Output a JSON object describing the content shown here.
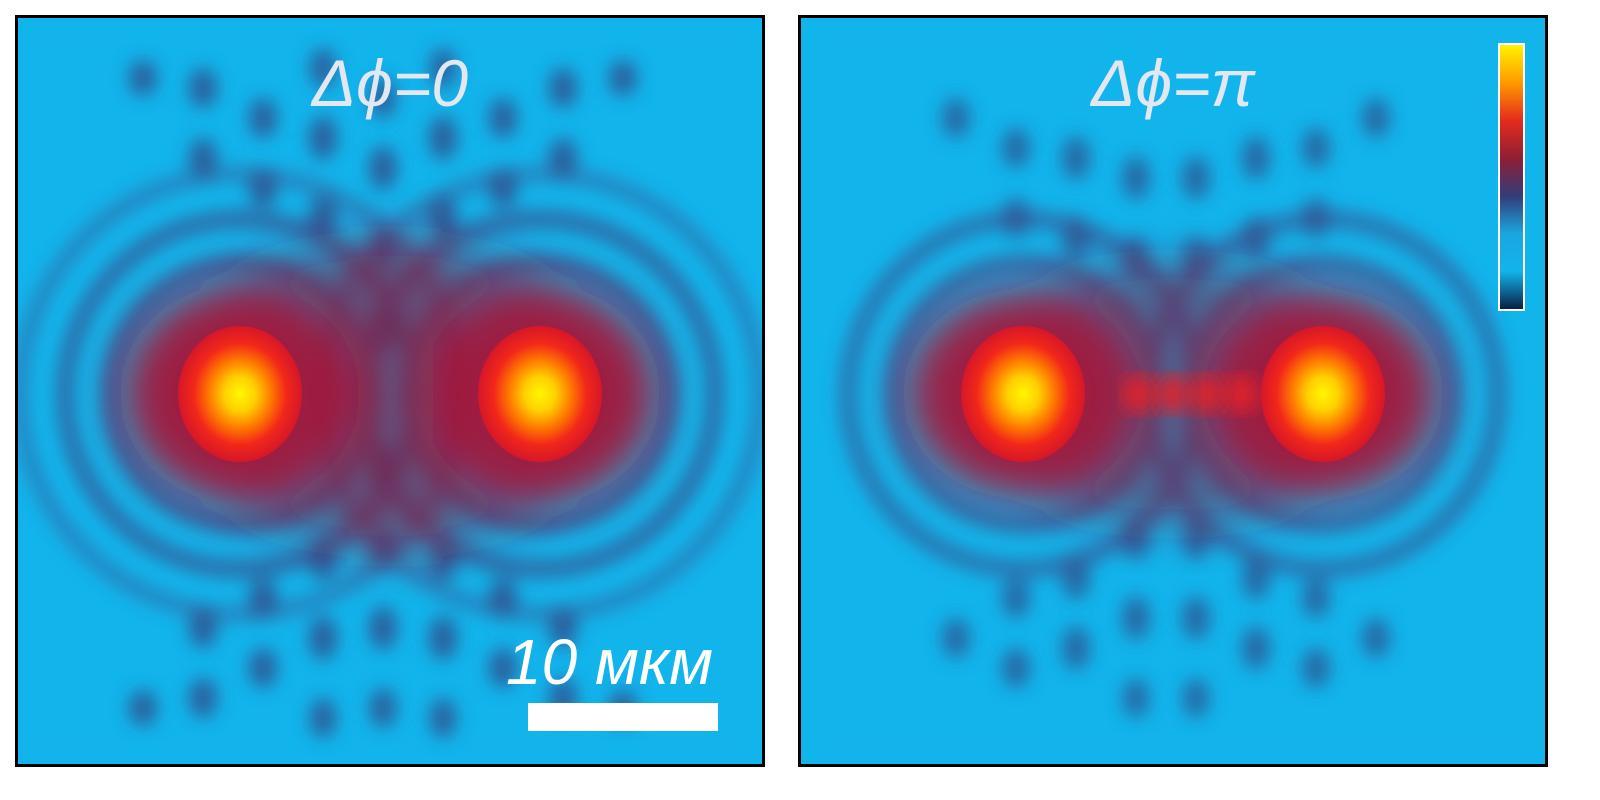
{
  "figure": {
    "panels": [
      {
        "phase_label": "Δϕ=0"
      },
      {
        "phase_label": "Δϕ=π"
      }
    ],
    "scale_bar": {
      "label": "10 мкм",
      "length_um": 10
    },
    "colorbar": {
      "colors": [
        "#fff200",
        "#ff9a00",
        "#e52b1d",
        "#8f1f34",
        "#343b78",
        "#1aa6e0",
        "#12b4ec",
        "#0a1f45"
      ]
    },
    "colors": {
      "background": "#12b4ec",
      "fringe_dark": "#2f4f8c",
      "glow": "#b3122e",
      "spot_outer": "#ff2a18",
      "spot_inner": "#fff200"
    }
  }
}
